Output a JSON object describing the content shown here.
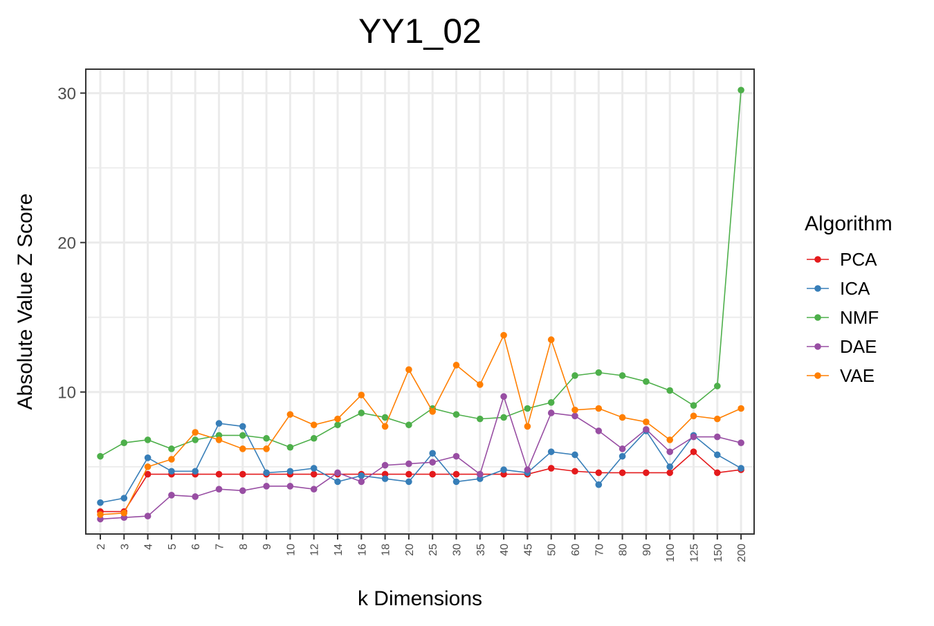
{
  "chart_data": {
    "type": "line",
    "title": "YY1_02",
    "xlabel": "k Dimensions",
    "ylabel": "Absolute Value Z Score",
    "categories": [
      "2",
      "3",
      "4",
      "5",
      "6",
      "7",
      "8",
      "9",
      "10",
      "12",
      "14",
      "16",
      "18",
      "20",
      "25",
      "30",
      "35",
      "40",
      "45",
      "50",
      "60",
      "70",
      "80",
      "90",
      "100",
      "125",
      "150",
      "200"
    ],
    "y_ticks": [
      10,
      20,
      30
    ],
    "ylim": [
      0.5,
      31.6
    ],
    "grid": true,
    "legend_title": "Algorithm",
    "legend_position": "right",
    "series": [
      {
        "name": "PCA",
        "color": "#e41a1c",
        "values": [
          2.0,
          2.0,
          4.5,
          4.5,
          4.5,
          4.5,
          4.5,
          4.5,
          4.5,
          4.5,
          4.5,
          4.5,
          4.5,
          4.5,
          4.5,
          4.5,
          4.5,
          4.5,
          4.5,
          4.9,
          4.7,
          4.6,
          4.6,
          4.6,
          4.6,
          6.0,
          4.6,
          4.8
        ]
      },
      {
        "name": "ICA",
        "color": "#377eb8",
        "values": [
          2.6,
          2.9,
          5.6,
          4.7,
          4.7,
          7.9,
          7.7,
          4.6,
          4.7,
          4.9,
          4.0,
          4.4,
          4.2,
          4.0,
          5.9,
          4.0,
          4.2,
          4.8,
          4.6,
          6.0,
          5.8,
          3.8,
          5.7,
          7.4,
          5.0,
          7.1,
          5.8,
          4.9
        ]
      },
      {
        "name": "NMF",
        "color": "#4daf4a",
        "values": [
          5.7,
          6.6,
          6.8,
          6.2,
          6.8,
          7.1,
          7.1,
          6.9,
          6.3,
          6.9,
          7.8,
          8.6,
          8.3,
          7.8,
          8.9,
          8.5,
          8.2,
          8.3,
          8.9,
          9.3,
          11.1,
          11.3,
          11.1,
          10.7,
          10.1,
          9.1,
          10.4,
          30.2
        ]
      },
      {
        "name": "DAE",
        "color": "#984ea3",
        "values": [
          1.5,
          1.6,
          1.7,
          3.1,
          3.0,
          3.5,
          3.4,
          3.7,
          3.7,
          3.5,
          4.6,
          4.0,
          5.1,
          5.2,
          5.3,
          5.7,
          4.5,
          9.7,
          4.8,
          8.6,
          8.4,
          7.4,
          6.2,
          7.5,
          6.0,
          7.0,
          7.0,
          6.6
        ]
      },
      {
        "name": "VAE",
        "color": "#ff7f00",
        "values": [
          1.8,
          1.9,
          5.0,
          5.5,
          7.3,
          6.8,
          6.2,
          6.2,
          8.5,
          7.8,
          8.2,
          9.8,
          7.7,
          11.5,
          8.7,
          11.8,
          10.5,
          13.8,
          7.7,
          13.5,
          8.8,
          8.9,
          8.3,
          8.0,
          6.8,
          8.4,
          8.2,
          8.9
        ]
      }
    ]
  }
}
